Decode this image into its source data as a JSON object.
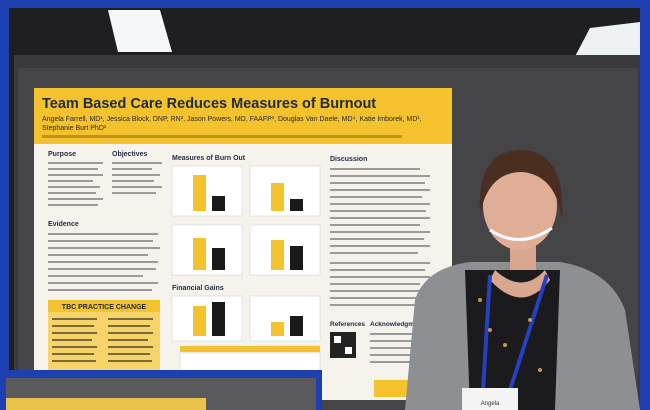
{
  "poster": {
    "title": "Team Based Care Reduces Measures of Burnout",
    "authors": "Angela Farrell, MD¹, Jessica Block, DNP, RN², Jason Powers, MD, FAAFP³, Douglas Van Daele, MD⁴, Katie Imborek, MD¹,",
    "authors_2": "Stephanie Burt PhD¹",
    "sections": {
      "purpose": "Purpose",
      "objectives": "Objectives",
      "measures": "Measures of Burn Out",
      "discussion": "Discussion",
      "evidence": "Evidence",
      "practice_change": "TBC PRACTICE CHANGE",
      "financial": "Financial Gains",
      "references": "References",
      "acknowledgments": "Acknowledgments"
    }
  },
  "badge": {
    "name": "Angela"
  }
}
